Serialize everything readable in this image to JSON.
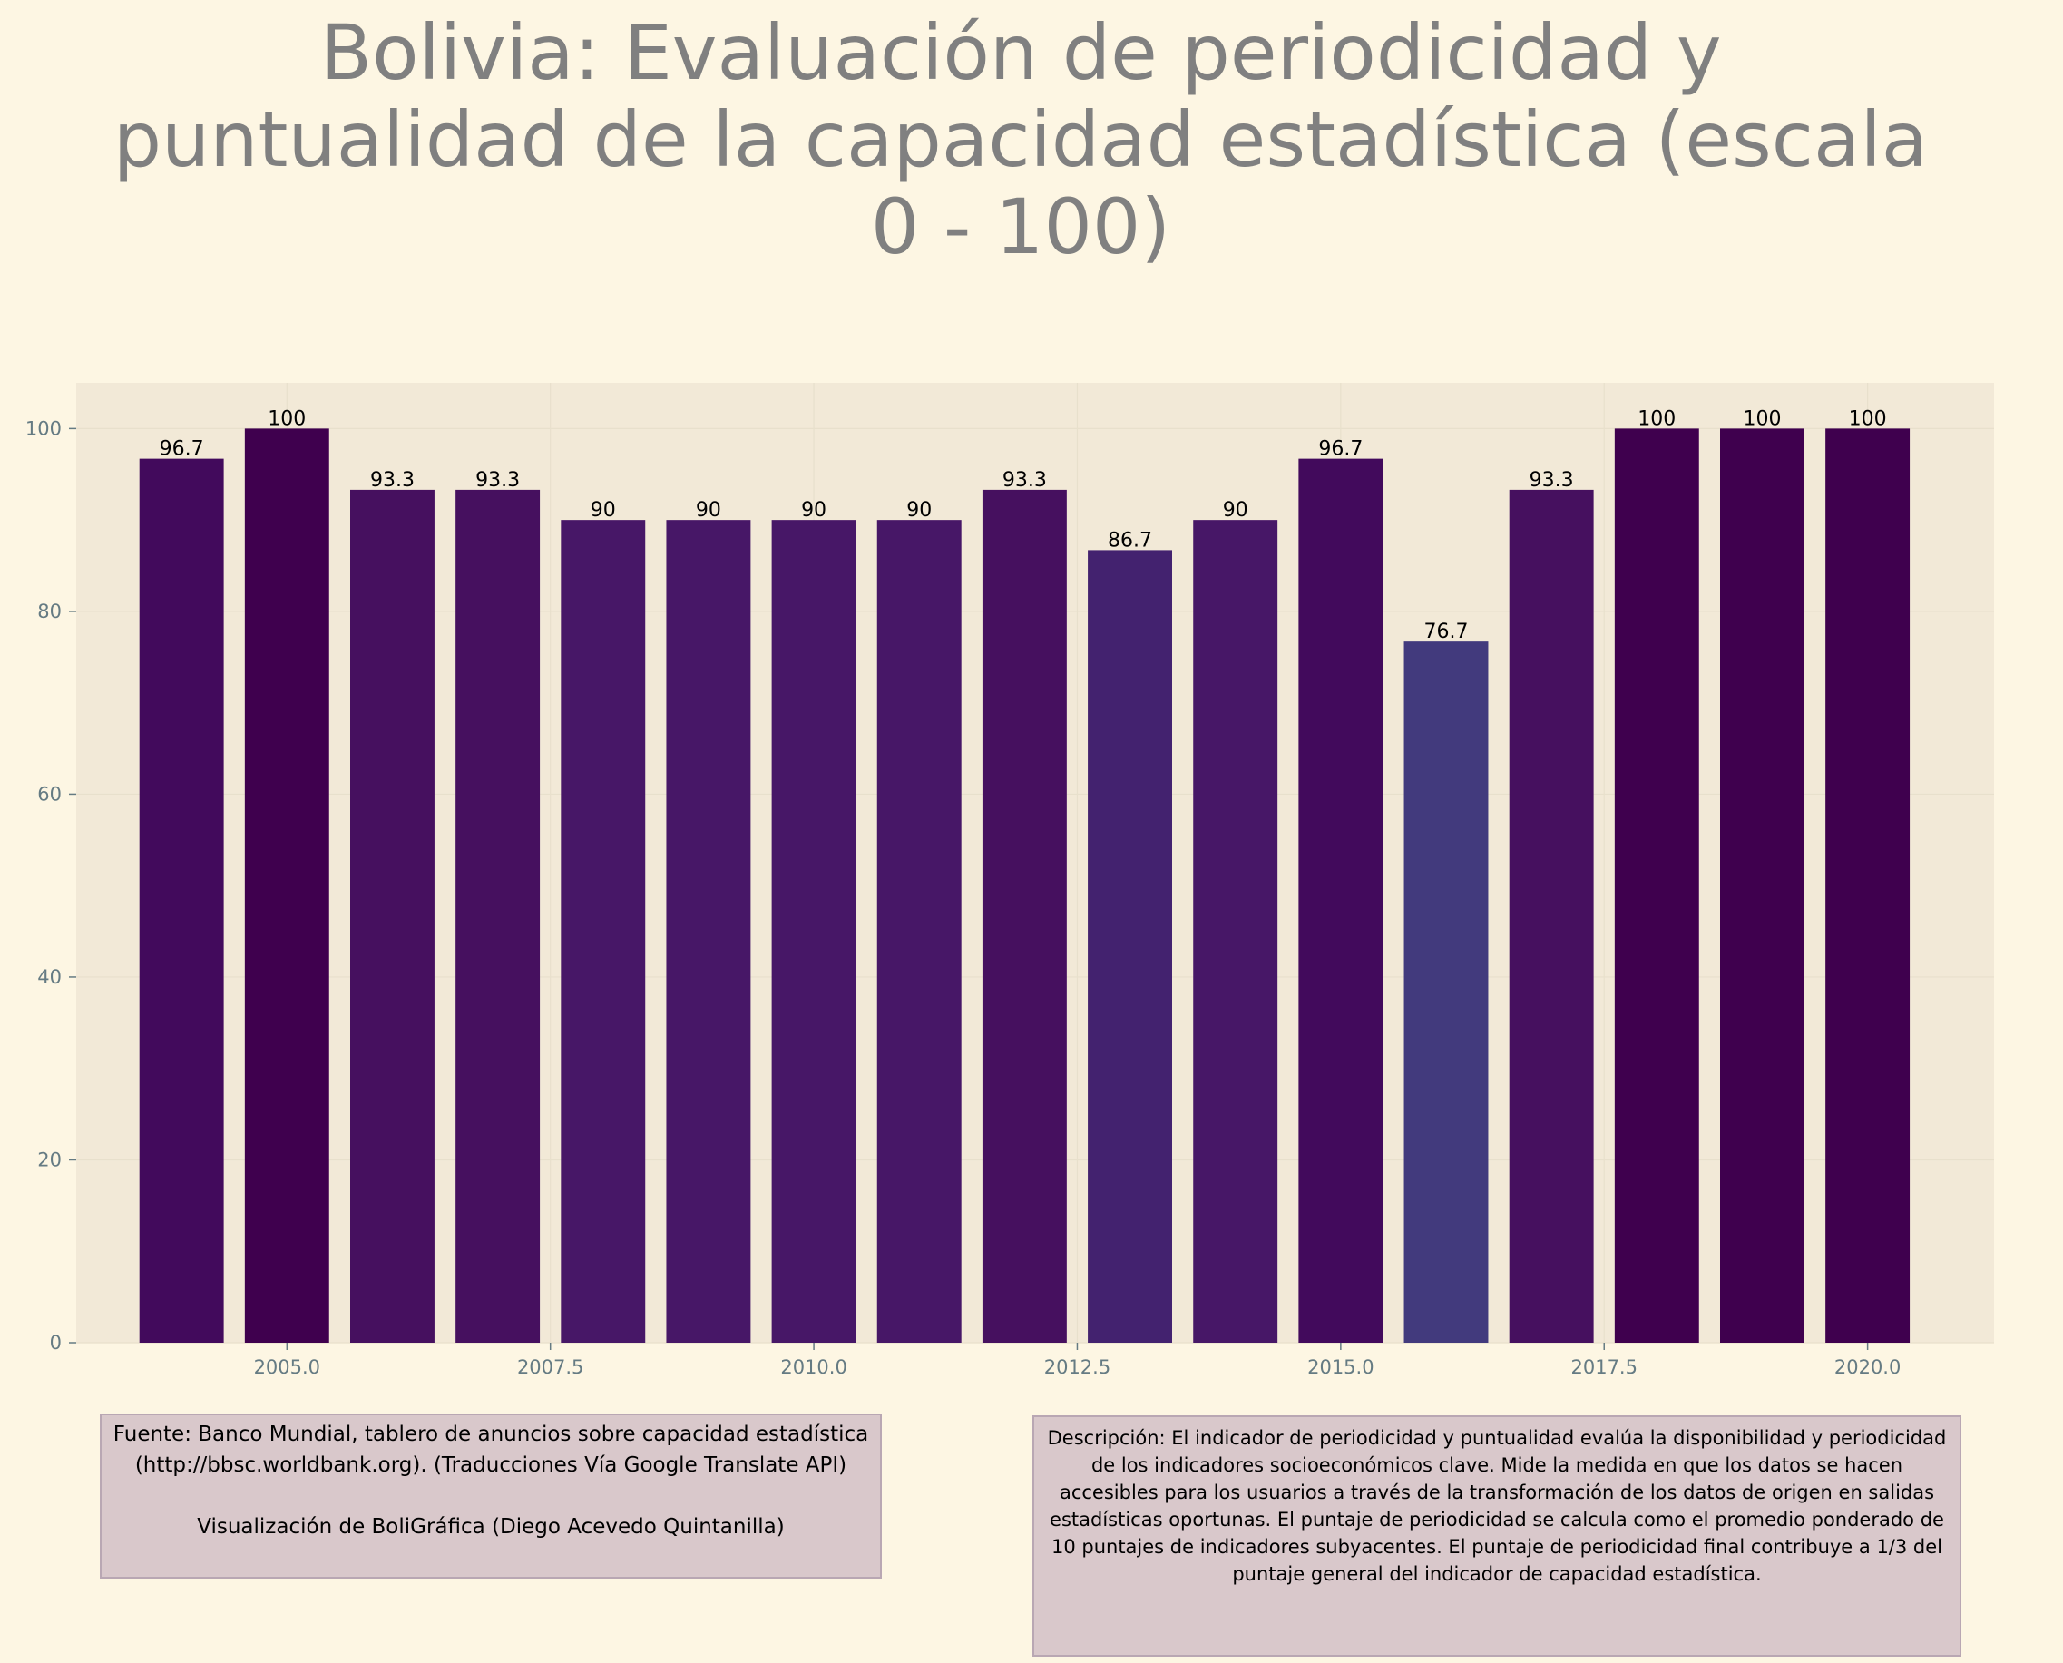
{
  "title": "Bolivia:  Evaluación de periodicidad y puntualidad de la capacidad estadística (escala 0 - 100)",
  "chart_data": {
    "type": "bar",
    "x": [
      2004,
      2005,
      2006,
      2007,
      2008,
      2009,
      2010,
      2011,
      2012,
      2013,
      2014,
      2015,
      2016,
      2017,
      2018,
      2019,
      2020
    ],
    "values": [
      96.7,
      100,
      93.3,
      93.3,
      90,
      90,
      90,
      90,
      93.3,
      86.7,
      90,
      96.7,
      76.7,
      93.3,
      100,
      100,
      100
    ],
    "value_labels": [
      "96.7",
      "100",
      "93.3",
      "93.3",
      "90",
      "90",
      "90",
      "90",
      "93.3",
      "86.7",
      "90",
      "96.7",
      "76.7",
      "93.3",
      "100",
      "100",
      "100"
    ],
    "xlim": [
      2003.0,
      2021.2
    ],
    "ylim": [
      0,
      105
    ],
    "xticks": [
      2005.0,
      2007.5,
      2010.0,
      2012.5,
      2015.0,
      2017.5,
      2020.0
    ],
    "xtick_labels": [
      "2005.0",
      "2007.5",
      "2010.0",
      "2012.5",
      "2015.0",
      "2017.5",
      "2020.0"
    ],
    "yticks": [
      0,
      20,
      40,
      60,
      80,
      100
    ],
    "ytick_labels": [
      "0",
      "20",
      "40",
      "60",
      "80",
      "100"
    ],
    "grid": true,
    "colors": {
      "100": "#3f004e",
      "96.7": "#420a5c",
      "93.3": "#46105f",
      "90": "#471767",
      "86.7": "#43226f",
      "76.7": "#423a7d",
      "plot_background": "#f2e9d7",
      "page_background": "#fdf6e3"
    }
  },
  "source": {
    "line1": "Fuente: Banco Mundial, tablero de anuncios sobre capacidad estadística (http://bbsc.worldbank.org). (Traducciones Vía Google Translate API)",
    "line2": "Visualización de BoliGráfica (Diego Acevedo Quintanilla)"
  },
  "description": "Descripción: El indicador de periodicidad y puntualidad evalúa la disponibilidad y periodicidad de los indicadores socioeconómicos clave. Mide la medida en que los datos se hacen accesibles para los usuarios a través de la transformación de los datos de origen en salidas estadísticas oportunas. El puntaje de periodicidad se calcula como el promedio ponderado de 10 puntajes de indicadores subyacentes. El puntaje de periodicidad final contribuye a 1/3 del puntaje general del indicador de capacidad estadística."
}
